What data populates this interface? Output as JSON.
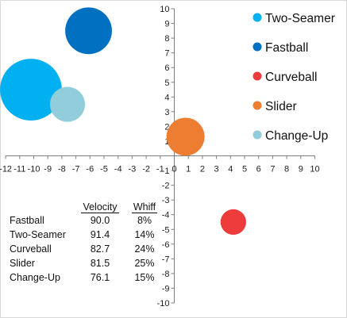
{
  "chart_data": {
    "type": "bubble",
    "xlim": [
      -12,
      10
    ],
    "ylim": [
      -10,
      10
    ],
    "x_ticks": [
      -12,
      -11,
      -10,
      -9,
      -8,
      -7,
      -6,
      -5,
      -4,
      -3,
      -2,
      -1,
      0,
      1,
      2,
      3,
      4,
      5,
      6,
      7,
      8,
      9,
      10
    ],
    "y_ticks": [
      -10,
      -9,
      -8,
      -7,
      -6,
      -5,
      -4,
      -3,
      -2,
      -1,
      0,
      1,
      2,
      3,
      4,
      5,
      6,
      7,
      8,
      9,
      10
    ],
    "legend_position": "right",
    "series": [
      {
        "name": "Two-Seamer",
        "color": "#00B0F0",
        "x": -10.2,
        "y": 4.5,
        "size": 14
      },
      {
        "name": "Fastball",
        "color": "#0070C0",
        "x": -6.1,
        "y": 8.5,
        "size": 8
      },
      {
        "name": "Curveball",
        "color": "#EE3B3B",
        "x": 4.2,
        "y": -4.5,
        "size": 2.4
      },
      {
        "name": "Slider",
        "color": "#ED7D31",
        "x": 0.8,
        "y": 1.3,
        "size": 5.3
      },
      {
        "name": "Change-Up",
        "color": "#92CDDC",
        "x": -7.6,
        "y": 3.5,
        "size": 4.5
      }
    ]
  },
  "table": {
    "headers": [
      "Velocity",
      "Whiff"
    ],
    "rows": [
      {
        "pitch": "Fastball",
        "velocity": "90.0",
        "whiff": "8%"
      },
      {
        "pitch": "Two-Seamer",
        "velocity": "91.4",
        "whiff": "14%"
      },
      {
        "pitch": "Curveball",
        "velocity": "82.7",
        "whiff": "24%"
      },
      {
        "pitch": "Slider",
        "velocity": "81.5",
        "whiff": "25%"
      },
      {
        "pitch": "Change-Up",
        "velocity": "76.1",
        "whiff": "15%"
      }
    ]
  }
}
